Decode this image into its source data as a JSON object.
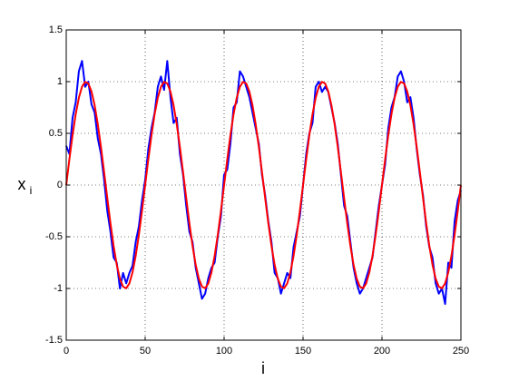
{
  "chart_data": {
    "type": "line",
    "xlabel": "i",
    "ylabel": "x",
    "ylabel_subscript": "i",
    "x": [
      0,
      2,
      4,
      6,
      8,
      10,
      12,
      14,
      16,
      18,
      20,
      22,
      24,
      26,
      28,
      30,
      32,
      34,
      36,
      38,
      40,
      42,
      44,
      46,
      48,
      50,
      52,
      54,
      56,
      58,
      60,
      62,
      64,
      66,
      68,
      70,
      72,
      74,
      76,
      78,
      80,
      82,
      84,
      86,
      88,
      90,
      92,
      94,
      96,
      98,
      100,
      102,
      104,
      106,
      108,
      110,
      112,
      114,
      116,
      118,
      120,
      122,
      124,
      126,
      128,
      130,
      132,
      134,
      136,
      138,
      140,
      142,
      144,
      146,
      148,
      150,
      152,
      154,
      156,
      158,
      160,
      162,
      164,
      166,
      168,
      170,
      172,
      174,
      176,
      178,
      180,
      182,
      184,
      186,
      188,
      190,
      192,
      194,
      196,
      198,
      200,
      202,
      204,
      206,
      208,
      210,
      212,
      214,
      216,
      218,
      220,
      222,
      224,
      226,
      228,
      230,
      232,
      234,
      236,
      238,
      240,
      242,
      244,
      246,
      248,
      250
    ],
    "series": [
      {
        "color": "#0000ff",
        "width": 2,
        "values": [
          0.38,
          0.3,
          0.65,
          0.8,
          1.1,
          1.2,
          0.95,
          1.0,
          0.78,
          0.7,
          0.45,
          0.3,
          0.05,
          -0.25,
          -0.45,
          -0.7,
          -0.75,
          -1.0,
          -0.85,
          -0.95,
          -0.85,
          -0.78,
          -0.55,
          -0.4,
          -0.15,
          0.05,
          0.35,
          0.55,
          0.7,
          0.95,
          1.05,
          0.92,
          1.2,
          0.85,
          0.6,
          0.65,
          0.3,
          0.1,
          -0.2,
          -0.45,
          -0.55,
          -0.8,
          -0.95,
          -1.1,
          -1.05,
          -0.9,
          -0.8,
          -0.75,
          -0.5,
          -0.3,
          0.1,
          0.15,
          0.4,
          0.75,
          0.8,
          1.1,
          1.05,
          0.95,
          0.85,
          0.7,
          0.55,
          0.4,
          0.1,
          -0.1,
          -0.35,
          -0.55,
          -0.85,
          -0.9,
          -1.05,
          -0.95,
          -0.85,
          -0.9,
          -0.6,
          -0.45,
          -0.3,
          0.0,
          0.3,
          0.5,
          0.6,
          0.95,
          1.0,
          0.9,
          0.95,
          0.9,
          0.75,
          0.6,
          0.4,
          0.1,
          -0.2,
          -0.3,
          -0.55,
          -0.8,
          -0.95,
          -1.05,
          -1.0,
          -0.9,
          -0.8,
          -0.7,
          -0.45,
          -0.2,
          0.0,
          0.2,
          0.55,
          0.75,
          0.85,
          1.05,
          1.1,
          1.0,
          0.8,
          0.85,
          0.65,
          0.35,
          0.1,
          -0.1,
          -0.4,
          -0.6,
          -0.7,
          -0.95,
          -1.05,
          -1.0,
          -1.15,
          -0.75,
          -0.8,
          -0.35,
          -0.15,
          -0.05
        ]
      },
      {
        "color": "#ff0000",
        "width": 2,
        "values": [
          0,
          0.249,
          0.482,
          0.685,
          0.844,
          0.951,
          0.998,
          0.982,
          0.905,
          0.771,
          0.588,
          0.368,
          0.125,
          -0.125,
          -0.368,
          -0.588,
          -0.771,
          -0.905,
          -0.982,
          -0.998,
          -0.951,
          -0.844,
          -0.685,
          -0.482,
          -0.249,
          0,
          0.249,
          0.482,
          0.685,
          0.844,
          0.951,
          0.998,
          0.982,
          0.905,
          0.771,
          0.588,
          0.368,
          0.125,
          -0.125,
          -0.368,
          -0.588,
          -0.771,
          -0.905,
          -0.982,
          -0.998,
          -0.951,
          -0.844,
          -0.685,
          -0.482,
          -0.249,
          0,
          0.249,
          0.482,
          0.685,
          0.844,
          0.951,
          0.998,
          0.982,
          0.905,
          0.771,
          0.588,
          0.368,
          0.125,
          -0.125,
          -0.368,
          -0.588,
          -0.771,
          -0.905,
          -0.982,
          -0.998,
          -0.951,
          -0.844,
          -0.685,
          -0.482,
          -0.249,
          0,
          0.249,
          0.482,
          0.685,
          0.844,
          0.951,
          0.998,
          0.982,
          0.905,
          0.771,
          0.588,
          0.368,
          0.125,
          -0.125,
          -0.368,
          -0.588,
          -0.771,
          -0.905,
          -0.982,
          -0.998,
          -0.951,
          -0.844,
          -0.685,
          -0.482,
          -0.249,
          0,
          0.249,
          0.482,
          0.685,
          0.844,
          0.951,
          0.998,
          0.982,
          0.905,
          0.771,
          0.588,
          0.368,
          0.125,
          -0.125,
          -0.368,
          -0.588,
          -0.771,
          -0.905,
          -0.982,
          -0.998,
          -0.951,
          -0.844,
          -0.685,
          -0.482,
          -0.249,
          0
        ]
      }
    ],
    "xlim": [
      0,
      250
    ],
    "xticks": [
      0,
      50,
      100,
      150,
      200,
      250
    ],
    "ylim": [
      -1.5,
      1.5
    ],
    "yticks": [
      -1.5,
      -1,
      -0.5,
      0,
      0.5,
      1,
      1.5
    ],
    "grid": true
  }
}
